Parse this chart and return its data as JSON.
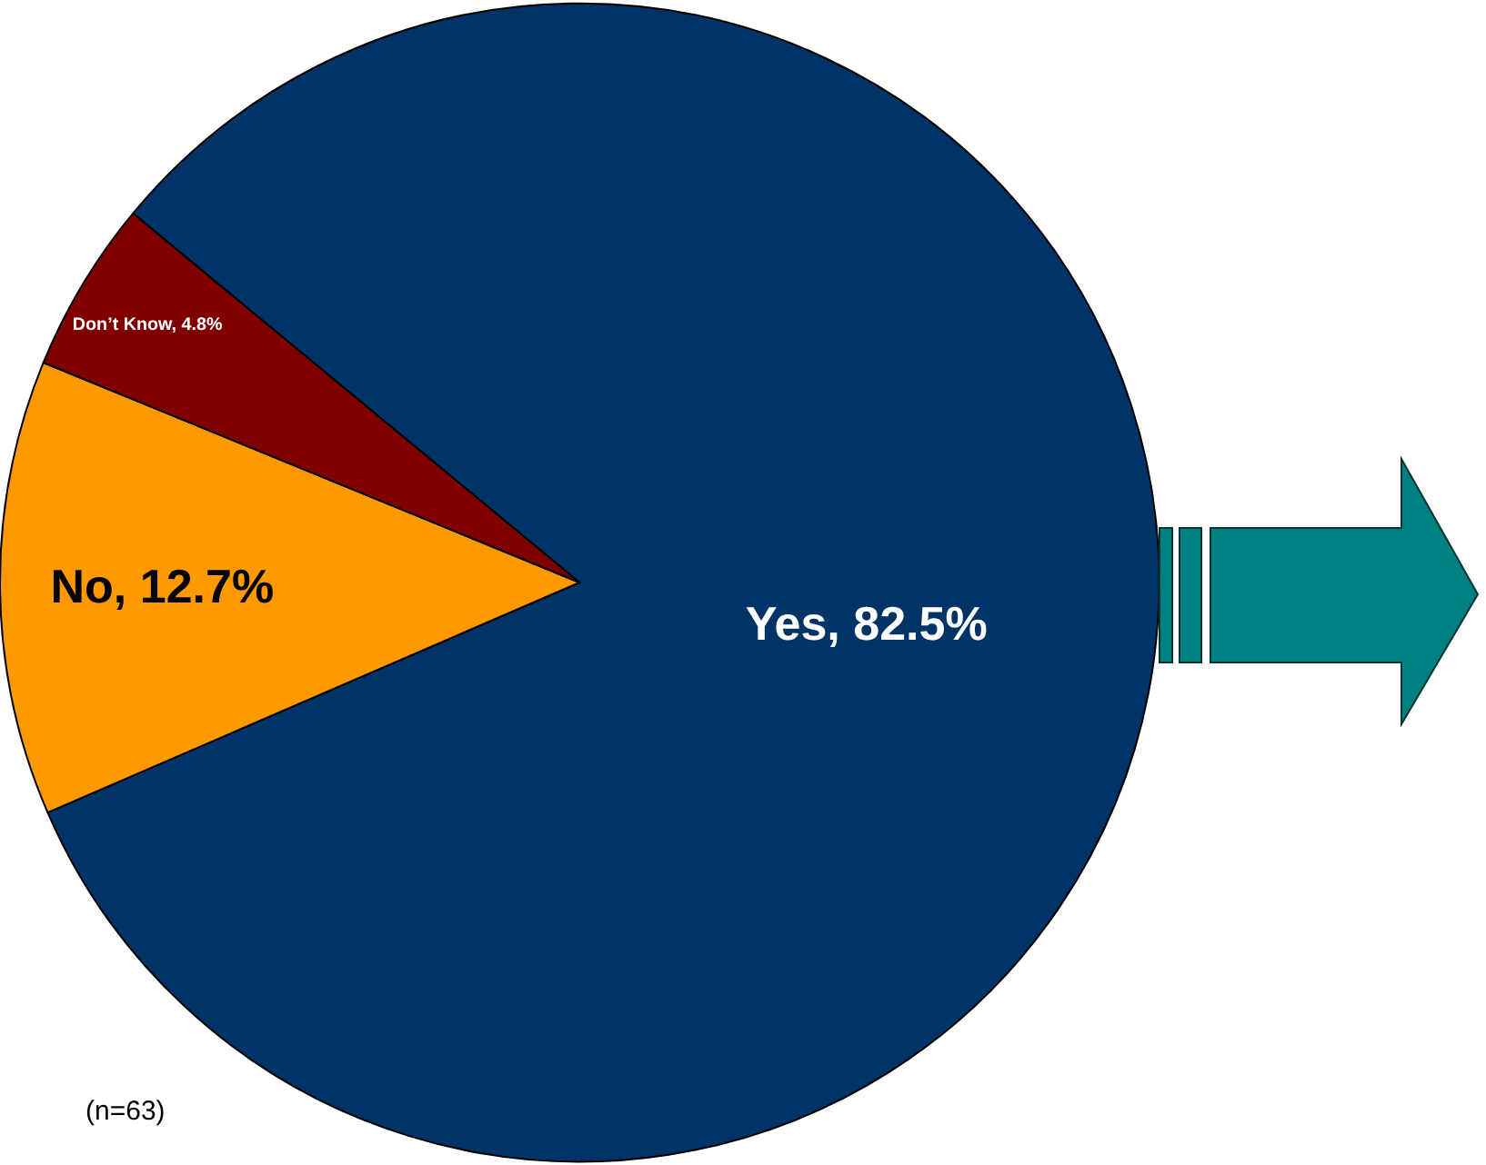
{
  "chart_data": {
    "type": "pie",
    "categories": [
      "Yes",
      "No",
      "Don’t Know"
    ],
    "values": [
      82.5,
      12.7,
      4.8
    ],
    "colors": [
      "#003366",
      "#ff9900",
      "#800000"
    ],
    "value_labels": [
      "82.5%",
      "12.7%",
      "4.8%"
    ],
    "annotations": [
      "(n=63)"
    ],
    "legend": false
  }
}
